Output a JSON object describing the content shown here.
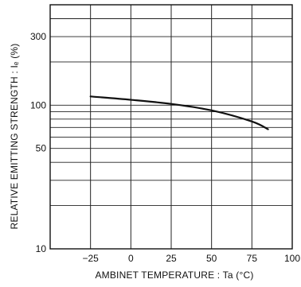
{
  "chart_data": {
    "type": "line",
    "title": "",
    "xlabel": "AMBINET TEMPERATURE : Ta (°C)",
    "ylabel": "RELATIVE EMITTING STRENGTH : Iₑ (%)",
    "x_scale": "linear",
    "y_scale": "log",
    "xlim": [
      -50,
      100
    ],
    "ylim": [
      10,
      500
    ],
    "x_ticks": [
      -25,
      0,
      25,
      50,
      75,
      100
    ],
    "x_tick_labels": [
      "−25",
      "0",
      "25",
      "50",
      "75",
      "100"
    ],
    "y_ticks": [
      10,
      50,
      100,
      300
    ],
    "y_tick_labels": [
      "10",
      "50",
      "100",
      "300"
    ],
    "y_minor_gridlines": [
      20,
      30,
      40,
      50,
      60,
      70,
      80,
      90,
      100,
      200,
      300,
      400,
      500
    ],
    "grid": true,
    "series": [
      {
        "x": [
          -25,
          0,
          25,
          50,
          75,
          85
        ],
        "y": [
          115,
          109,
          102,
          92,
          77,
          68
        ]
      }
    ]
  }
}
